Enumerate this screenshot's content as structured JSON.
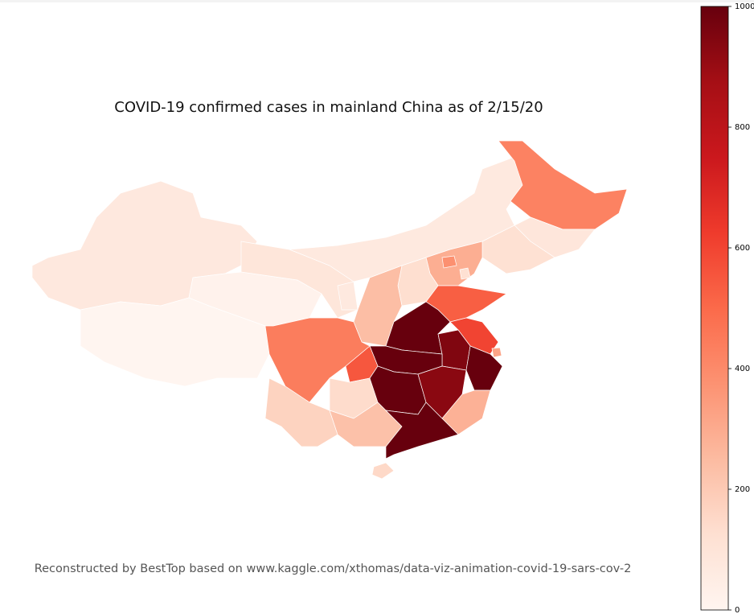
{
  "chart_data": {
    "type": "choropleth",
    "title": "COVID-19 confirmed cases in mainland China as of 2/15/20",
    "caption": "Reconstructed by BestTop based on www.kaggle.com/xthomas/data-viz-animation-covid-19-sars-cov-2",
    "colormap": "Reds",
    "vlim": [
      0,
      1000
    ],
    "ticks": [
      0,
      200,
      400,
      600,
      800,
      1000
    ],
    "values": [
      76,
      1,
      18,
      90,
      70,
      425,
      89,
      119,
      290,
      380,
      120,
      130,
      240,
      70,
      530,
      1000,
      600,
      950,
      320,
      1000,
      1000,
      550,
      440,
      140,
      1000,
      930,
      280,
      170,
      230,
      1000,
      150
    ]
  }
}
